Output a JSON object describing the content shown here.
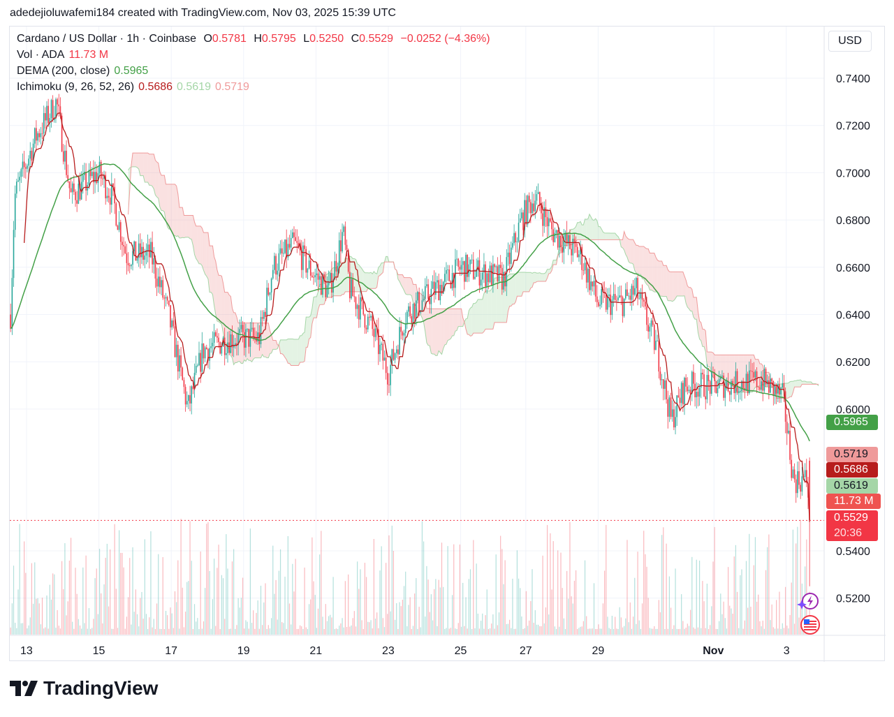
{
  "top_caption": "adedejioluwafemi184 created with TradingView.com, Nov 03, 2025 15:39 UTC",
  "legend": {
    "symbol": "Cardano / US Dollar · 1h · Coinbase",
    "o_label": "O",
    "o": "0.5781",
    "h_label": "H",
    "h": "0.5795",
    "l_label": "L",
    "l": "0.5250",
    "c_label": "C",
    "c": "0.5529",
    "change": "−0.0252 (−4.36%)",
    "vol_label": "Vol · ADA",
    "vol": "11.73 M",
    "dema_label": "DEMA (200, close)",
    "dema": "0.5965",
    "ichi_label": "Ichimoku (9, 26, 52, 26)",
    "ichi_conv": "0.5686",
    "ichi_a": "0.5619",
    "ichi_b": "0.5719"
  },
  "currency": "USD",
  "tags": {
    "dema": "0.5965",
    "ichi_b": "0.5719",
    "ichi_conv": "0.5686",
    "ichi_a": "0.5619",
    "vol": "11.73 M",
    "price": "0.5529",
    "countdown": "20:36"
  },
  "colors": {
    "up": "#26a69a",
    "down": "#f23645",
    "dema": "#43a047",
    "conv": "#b71c1c",
    "cloud_up": "#a5d6a7",
    "cloud_down": "#ef9a9a"
  },
  "logo_text": "TradingView",
  "chart_data": {
    "type": "candlestick",
    "title": "Cardano / US Dollar · 1h · Coinbase",
    "ylim": [
      0.51,
      0.755
    ],
    "y_ticks": [
      "0.7400",
      "0.7200",
      "0.7000",
      "0.6800",
      "0.6600",
      "0.6400",
      "0.6200",
      "0.6000",
      "0.5400",
      "0.5200"
    ],
    "x_ticks": [
      {
        "label": "13",
        "day": 0
      },
      {
        "label": "15",
        "day": 2
      },
      {
        "label": "17",
        "day": 4
      },
      {
        "label": "19",
        "day": 6
      },
      {
        "label": "21",
        "day": 8
      },
      {
        "label": "23",
        "day": 10
      },
      {
        "label": "25",
        "day": 12
      },
      {
        "label": "27",
        "day": 13.8
      },
      {
        "label": "29",
        "day": 15.8
      },
      {
        "label": "Nov",
        "day": 19
      },
      {
        "label": "3",
        "day": 21
      }
    ],
    "close_path_day_price": [
      [
        -0.44,
        0.64
      ],
      [
        -0.33,
        0.69
      ],
      [
        0.25,
        0.715
      ],
      [
        0.83,
        0.73
      ],
      [
        1.22,
        0.69
      ],
      [
        1.99,
        0.7
      ],
      [
        2.37,
        0.69
      ],
      [
        2.76,
        0.665
      ],
      [
        3.44,
        0.665
      ],
      [
        3.92,
        0.64
      ],
      [
        4.46,
        0.6
      ],
      [
        4.88,
        0.625
      ],
      [
        5.66,
        0.63
      ],
      [
        6.43,
        0.63
      ],
      [
        6.81,
        0.66
      ],
      [
        7.39,
        0.67
      ],
      [
        7.78,
        0.66
      ],
      [
        8.36,
        0.65
      ],
      [
        8.75,
        0.675
      ],
      [
        8.94,
        0.65
      ],
      [
        9.52,
        0.635
      ],
      [
        10.0,
        0.615
      ],
      [
        10.48,
        0.64
      ],
      [
        11.25,
        0.65
      ],
      [
        12.03,
        0.66
      ],
      [
        13.19,
        0.655
      ],
      [
        13.67,
        0.68
      ],
      [
        14.05,
        0.69
      ],
      [
        14.54,
        0.675
      ],
      [
        15.31,
        0.665
      ],
      [
        15.79,
        0.645
      ],
      [
        16.47,
        0.645
      ],
      [
        16.85,
        0.65
      ],
      [
        17.43,
        0.625
      ],
      [
        17.82,
        0.595
      ],
      [
        18.2,
        0.61
      ],
      [
        18.98,
        0.61
      ],
      [
        20.33,
        0.612
      ],
      [
        20.91,
        0.605
      ],
      [
        21.2,
        0.57
      ],
      [
        21.58,
        0.57
      ],
      [
        21.68,
        0.5529
      ]
    ],
    "last": {
      "open": 0.5781,
      "high": 0.5795,
      "low": 0.525,
      "close": 0.5529,
      "volume": "11.73 M"
    },
    "indicators": [
      "DEMA (200, close)",
      "Ichimoku (9, 26, 52, 26)",
      "Volume"
    ]
  }
}
